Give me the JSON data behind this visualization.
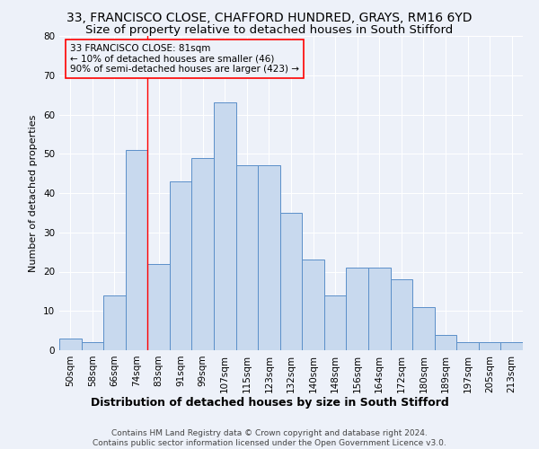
{
  "title": "33, FRANCISCO CLOSE, CHAFFORD HUNDRED, GRAYS, RM16 6YD",
  "subtitle": "Size of property relative to detached houses in South Stifford",
  "xlabel": "Distribution of detached houses by size in South Stifford",
  "ylabel": "Number of detached properties",
  "footnote": "Contains HM Land Registry data © Crown copyright and database right 2024.\nContains public sector information licensed under the Open Government Licence v3.0.",
  "bar_labels": [
    "50sqm",
    "58sqm",
    "66sqm",
    "74sqm",
    "83sqm",
    "91sqm",
    "99sqm",
    "107sqm",
    "115sqm",
    "123sqm",
    "132sqm",
    "140sqm",
    "148sqm",
    "156sqm",
    "164sqm",
    "172sqm",
    "180sqm",
    "189sqm",
    "197sqm",
    "205sqm",
    "213sqm"
  ],
  "bar_heights": [
    3,
    2,
    14,
    51,
    22,
    43,
    49,
    63,
    47,
    47,
    35,
    23,
    14,
    21,
    21,
    18,
    11,
    4,
    2,
    2,
    2
  ],
  "bar_color": "#c8d9ee",
  "bar_edge_color": "#5b8fc9",
  "vline_x": 3.5,
  "annotation_line1": "33 FRANCISCO CLOSE: 81sqm",
  "annotation_line2": "← 10% of detached houses are smaller (46)",
  "annotation_line3": "90% of semi-detached houses are larger (423) →",
  "ylim": [
    0,
    80
  ],
  "yticks": [
    0,
    10,
    20,
    30,
    40,
    50,
    60,
    70,
    80
  ],
  "background_color": "#edf1f9",
  "grid_color": "#ffffff",
  "title_fontsize": 10,
  "subtitle_fontsize": 9.5,
  "xlabel_fontsize": 9,
  "ylabel_fontsize": 8,
  "tick_fontsize": 7.5,
  "annotation_fontsize": 7.5,
  "footnote_fontsize": 6.5
}
